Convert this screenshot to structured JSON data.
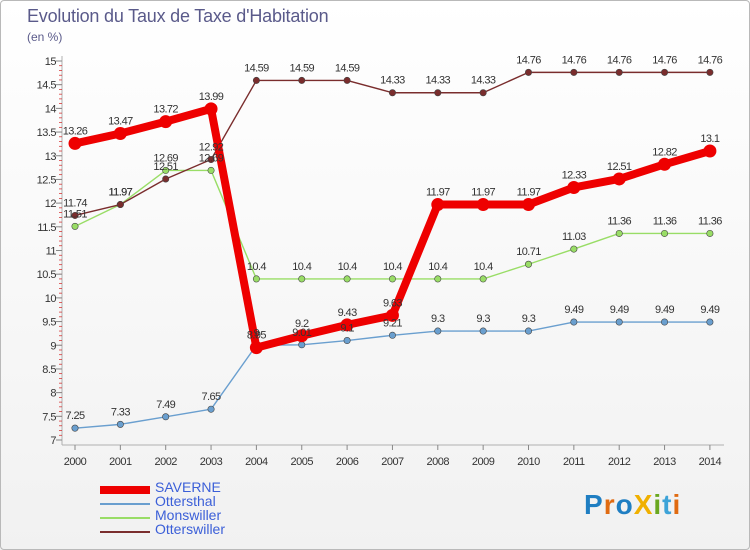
{
  "title": "Evolution du Taux de Taxe d'Habitation",
  "unit_label": "(en %)",
  "logo": {
    "text": "ProXiti",
    "letters": [
      {
        "ch": "P",
        "color": "#1f7ec2"
      },
      {
        "ch": "r",
        "color": "#e06b12"
      },
      {
        "ch": "o",
        "color": "#1f7ec2"
      },
      {
        "ch": "X",
        "color": "#f0b000"
      },
      {
        "ch": "i",
        "color": "#6aa820"
      },
      {
        "ch": "t",
        "color": "#3da3d8"
      },
      {
        "ch": "i",
        "color": "#e06b12"
      }
    ]
  },
  "chart_data": {
    "type": "line",
    "title": "Evolution du Taux de Taxe d'Habitation",
    "ylabel": "(en %)",
    "xlabel": "",
    "x": [
      "2000",
      "2001",
      "2002",
      "2003",
      "2004",
      "2005",
      "2006",
      "2007",
      "2008",
      "2009",
      "2010",
      "2011",
      "2012",
      "2013",
      "2014"
    ],
    "ylim": [
      7,
      15
    ],
    "yticks": [
      "7",
      "7.5",
      "8",
      "8.5",
      "9",
      "9.5",
      "10",
      "10.5",
      "11",
      "11.5",
      "12",
      "12.5",
      "13",
      "13.5",
      "14",
      "14.5",
      "15"
    ],
    "grid": false,
    "legend_position": "bottom-left",
    "series": [
      {
        "name": "SAVERNE",
        "color": "#ee0000",
        "text_color": "#3b5fd8",
        "values": [
          13.26,
          13.47,
          13.72,
          13.99,
          8.95,
          9.2,
          9.43,
          9.63,
          11.97,
          11.97,
          11.97,
          12.33,
          12.51,
          12.82,
          13.1
        ],
        "labels": [
          "13.26",
          "13.47",
          "13.72",
          "13.99",
          "8.95",
          "9.2",
          "9.43",
          "9.63",
          "11.97",
          "11.97",
          "11.97",
          "12.33",
          "12.51",
          "12.82",
          "13.1"
        ]
      },
      {
        "name": "Ottersthal",
        "color": "#6a9fcf",
        "text_color": "#3b5fd8",
        "values": [
          7.25,
          7.33,
          7.49,
          7.65,
          9.0,
          9.01,
          9.1,
          9.21,
          9.3,
          9.3,
          9.3,
          9.49,
          9.49,
          9.49,
          9.49
        ],
        "labels": [
          "7.25",
          "7.33",
          "7.49",
          "7.65",
          "9",
          "9.01",
          "9.1",
          "9.21",
          "9.3",
          "9.3",
          "9.3",
          "9.49",
          "9.49",
          "9.49",
          "9.49"
        ]
      },
      {
        "name": "Monswiller",
        "color": "#99dd66",
        "text_color": "#3b5fd8",
        "values": [
          11.51,
          11.97,
          12.69,
          12.69,
          10.4,
          10.4,
          10.4,
          10.4,
          10.4,
          10.4,
          10.71,
          11.03,
          11.36,
          11.36,
          11.36
        ],
        "labels": [
          "11.51",
          "11.97",
          "12.69",
          "12.69",
          "10.4",
          "10.4",
          "10.4",
          "10.4",
          "10.4",
          "10.4",
          "10.71",
          "11.03",
          "11.36",
          "11.36",
          "11.36"
        ]
      },
      {
        "name": "Otterswiller",
        "color": "#7a2d2d",
        "text_color": "#3b5fd8",
        "values": [
          11.74,
          11.97,
          12.51,
          12.92,
          14.59,
          14.59,
          14.59,
          14.33,
          14.33,
          14.33,
          14.76,
          14.76,
          14.76,
          14.76,
          14.76
        ],
        "labels": [
          "11.74",
          "11.97",
          "12.51",
          "12.92",
          "14.59",
          "14.59",
          "14.59",
          "14.33",
          "14.33",
          "14.33",
          "14.76",
          "14.76",
          "14.76",
          "14.76",
          "14.76"
        ]
      }
    ]
  }
}
